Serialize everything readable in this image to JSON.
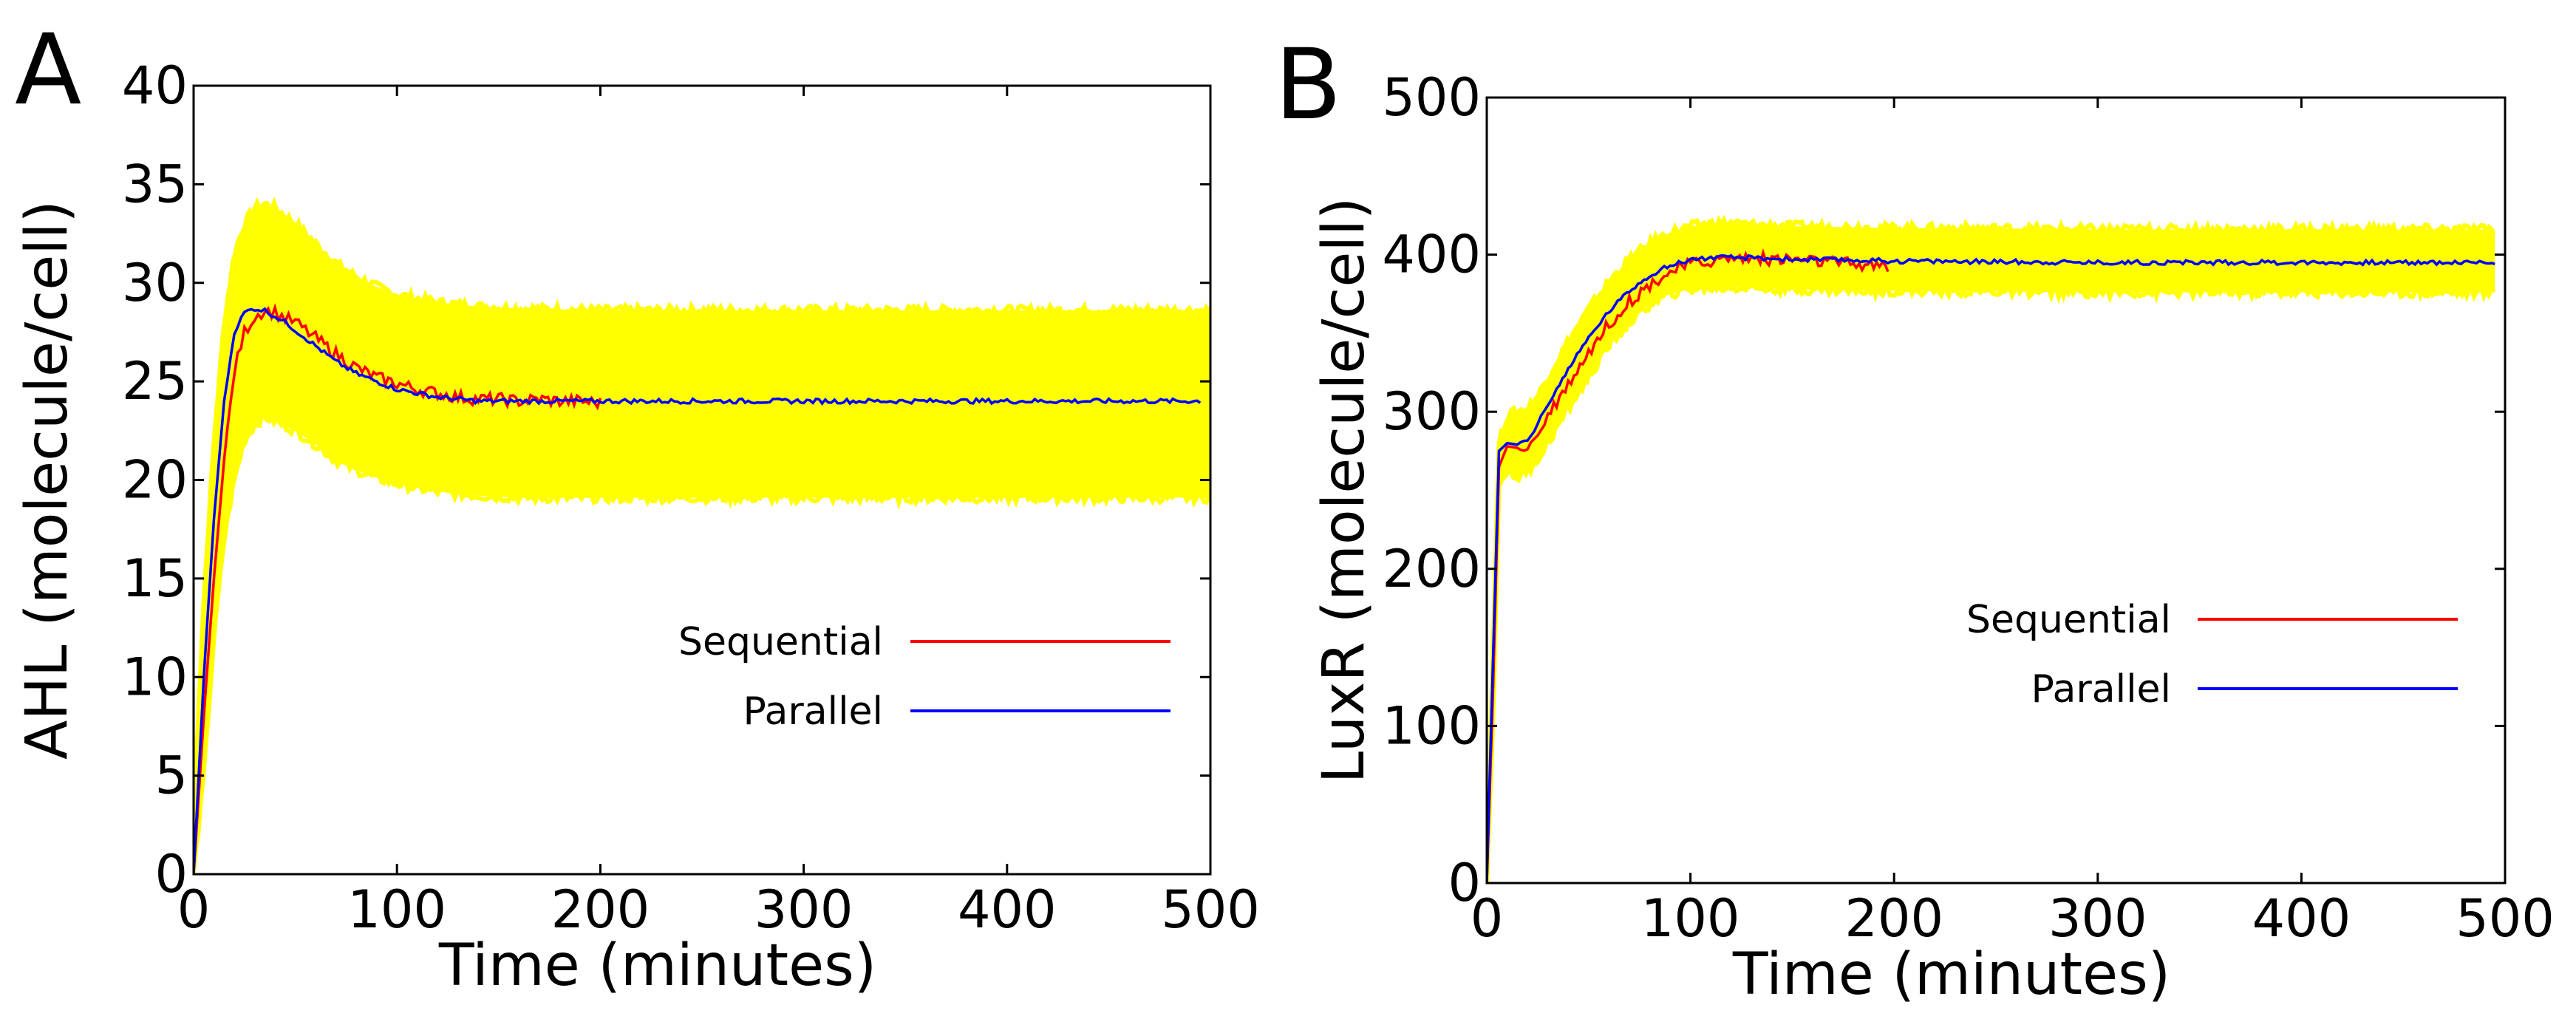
{
  "chart_data": [
    {
      "type": "line",
      "panel_label": "A",
      "xlabel": "Time (minutes)",
      "ylabel": "AHL (molecule/cell)",
      "xlim": [
        0,
        500
      ],
      "ylim": [
        0,
        40
      ],
      "xticks": [
        0,
        100,
        200,
        300,
        400,
        500
      ],
      "yticks": [
        0,
        5,
        10,
        15,
        20,
        25,
        30,
        35,
        40
      ],
      "grid": false,
      "legend": {
        "position": "lower-right"
      },
      "band": {
        "color": "#ffff00",
        "x": [
          0,
          5,
          10,
          15,
          20,
          25,
          30,
          35,
          40,
          50,
          60,
          70,
          80,
          90,
          100,
          120,
          140,
          160,
          200,
          300,
          400,
          500
        ],
        "upper": [
          3,
          14,
          22,
          28,
          31.5,
          33,
          33.8,
          34,
          33.8,
          33,
          32,
          31,
          30.3,
          29.8,
          29.4,
          29,
          28.8,
          28.7,
          28.6,
          28.6,
          28.6,
          28.6
        ],
        "lower": [
          0,
          5,
          12,
          17,
          20,
          22,
          22.8,
          23.2,
          23,
          22.5,
          21.8,
          21,
          20.5,
          20.1,
          19.8,
          19.4,
          19.2,
          19.1,
          19.1,
          19.1,
          19.1,
          19.1
        ]
      },
      "series": [
        {
          "name": "Sequential",
          "color": "#ff0000",
          "x": [
            0,
            5,
            10,
            15,
            20,
            25,
            30,
            35,
            40,
            45,
            50,
            55,
            60,
            70,
            80,
            90,
            100,
            110,
            120,
            130,
            140,
            150,
            160,
            170,
            180,
            190,
            200
          ],
          "y": [
            0,
            8,
            15,
            21,
            25.5,
            27.5,
            28.3,
            28.6,
            28.5,
            28.2,
            28,
            27.6,
            27.2,
            26.4,
            25.7,
            25.2,
            24.9,
            24.6,
            24.4,
            24.2,
            24.1,
            24.1,
            24.0,
            24.1,
            24.0,
            24.0,
            23.9
          ]
        },
        {
          "name": "Parallel",
          "color": "#0000ff",
          "x": [
            0,
            5,
            10,
            15,
            20,
            25,
            30,
            35,
            40,
            45,
            50,
            60,
            70,
            80,
            90,
            100,
            110,
            120,
            130,
            140,
            150,
            200,
            250,
            300,
            350,
            400,
            450,
            495
          ],
          "y": [
            0,
            10,
            18,
            24,
            27.5,
            28.5,
            28.7,
            28.6,
            28.3,
            28,
            27.6,
            26.8,
            26,
            25.4,
            25,
            24.6,
            24.4,
            24.2,
            24.1,
            24.0,
            24.0,
            24.0,
            24.0,
            24.0,
            24.0,
            24.0,
            24.0,
            24.0
          ]
        }
      ]
    },
    {
      "type": "line",
      "panel_label": "B",
      "xlabel": "Time (minutes)",
      "ylabel": "LuxR (molecule/cell)",
      "xlim": [
        0,
        500
      ],
      "ylim": [
        0,
        500
      ],
      "xticks": [
        0,
        100,
        200,
        300,
        400,
        500
      ],
      "yticks": [
        0,
        100,
        200,
        300,
        400,
        500
      ],
      "grid": false,
      "legend": {
        "position": "lower-right"
      },
      "band": {
        "color": "#ffff00",
        "x": [
          0,
          3,
          6,
          10,
          15,
          20,
          25,
          30,
          40,
          50,
          60,
          70,
          80,
          90,
          100,
          110,
          120,
          130,
          150,
          200,
          300,
          400,
          495
        ],
        "upper": [
          0,
          150,
          280,
          298,
          300,
          302,
          310,
          322,
          345,
          365,
          383,
          397,
          407,
          414,
          418,
          420,
          420,
          419,
          418,
          417,
          416,
          416,
          416
        ],
        "lower": [
          0,
          100,
          255,
          262,
          258,
          262,
          270,
          280,
          302,
          322,
          342,
          357,
          368,
          375,
          378,
          379,
          379,
          379,
          378,
          377,
          376,
          376,
          376
        ]
      },
      "series": [
        {
          "name": "Sequential",
          "color": "#ff0000",
          "x": [
            0,
            3,
            6,
            10,
            15,
            20,
            25,
            30,
            40,
            50,
            60,
            70,
            80,
            90,
            100,
            110,
            120,
            130,
            140,
            150,
            160,
            170,
            180,
            190,
            197
          ],
          "y": [
            0,
            120,
            265,
            278,
            277,
            278,
            285,
            298,
            318,
            338,
            356,
            370,
            381,
            389,
            394,
            396,
            398,
            398,
            397,
            397,
            396,
            395,
            394,
            393,
            392
          ]
        },
        {
          "name": "Parallel",
          "color": "#0000ff",
          "x": [
            0,
            3,
            6,
            10,
            15,
            20,
            25,
            30,
            40,
            50,
            60,
            70,
            80,
            90,
            100,
            110,
            120,
            130,
            150,
            200,
            300,
            400,
            495
          ],
          "y": [
            0,
            140,
            275,
            280,
            279,
            282,
            292,
            305,
            327,
            347,
            364,
            377,
            387,
            393,
            397,
            398,
            398,
            398,
            397,
            396,
            395,
            395,
            395
          ]
        }
      ]
    }
  ]
}
